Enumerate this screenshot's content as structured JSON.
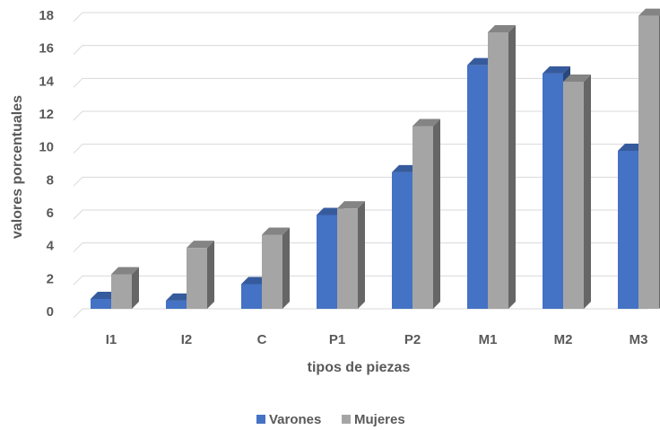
{
  "chart_data": {
    "type": "bar",
    "style": "3d-clustered-column",
    "categories": [
      "I1",
      "I2",
      "C",
      "P1",
      "P2",
      "M1",
      "M2",
      "M3"
    ],
    "series": [
      {
        "name": "Varones",
        "color": "#4472C4",
        "values": [
          0.6,
          0.5,
          1.5,
          5.7,
          8.3,
          14.8,
          14.3,
          9.6
        ]
      },
      {
        "name": "Mujeres",
        "color": "#A5A5A5",
        "values": [
          2.1,
          3.7,
          4.5,
          6.1,
          11.1,
          16.8,
          13.8,
          17.8
        ]
      }
    ],
    "y_ticks": [
      "0",
      "2",
      "4",
      "6",
      "8",
      "10",
      "12",
      "14",
      "16",
      "18"
    ],
    "ylim": [
      0,
      18
    ],
    "xlabel": "tipos de piezas",
    "ylabel": "valores porcentuales",
    "grid": true,
    "legend_position": "bottom"
  }
}
